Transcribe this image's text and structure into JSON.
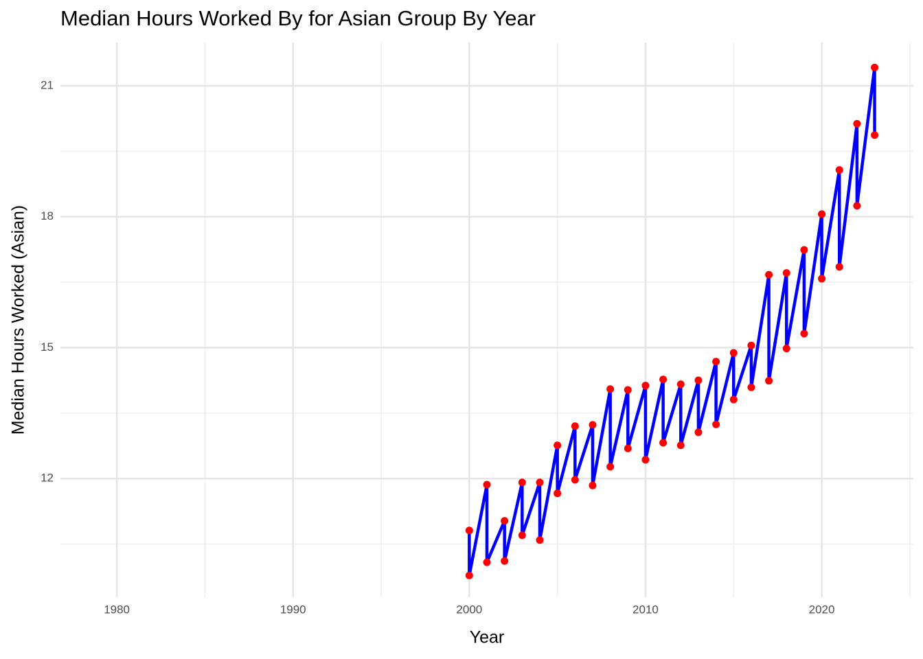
{
  "chart_data": {
    "type": "line",
    "title": "Median Hours Worked By for Asian Group By Year",
    "x_label": "Year",
    "y_label": "Median Hours Worked (Asian)",
    "x": [
      2000,
      2000,
      2001,
      2001,
      2002,
      2002,
      2003,
      2003,
      2004,
      2004,
      2005,
      2005,
      2006,
      2006,
      2007,
      2007,
      2008,
      2008,
      2009,
      2009,
      2010,
      2010,
      2011,
      2011,
      2012,
      2012,
      2013,
      2013,
      2014,
      2014,
      2015,
      2015,
      2016,
      2016,
      2017,
      2017,
      2018,
      2018,
      2019,
      2019,
      2020,
      2020,
      2021,
      2021,
      2022,
      2022,
      2023,
      2023
    ],
    "values": [
      10.81,
      9.78,
      11.86,
      10.08,
      11.03,
      10.11,
      11.91,
      10.7,
      11.91,
      10.59,
      12.76,
      11.66,
      13.2,
      11.97,
      13.23,
      11.84,
      14.05,
      12.27,
      14.03,
      12.69,
      14.13,
      12.43,
      14.27,
      12.82,
      14.16,
      12.76,
      14.25,
      13.06,
      14.68,
      13.24,
      14.88,
      13.81,
      15.05,
      14.09,
      16.67,
      14.24,
      16.71,
      14.98,
      17.24,
      15.32,
      18.06,
      16.58,
      19.07,
      16.85,
      20.13,
      18.25,
      21.42,
      19.87
    ],
    "line_color": "#0000ff",
    "point_color": "#ff0000",
    "xlim": [
      1976.8,
      2025.2
    ],
    "ylim": [
      9.28,
      21.99
    ],
    "xticks": [
      1980,
      1990,
      2000,
      2010,
      2020
    ],
    "yticks": [
      12,
      15,
      18,
      21
    ],
    "x_minor_grid": [
      1985,
      1995,
      2005,
      2015,
      2025
    ],
    "y_minor_grid": [
      10.5,
      13.5,
      16.5,
      19.5
    ],
    "grid": true
  }
}
